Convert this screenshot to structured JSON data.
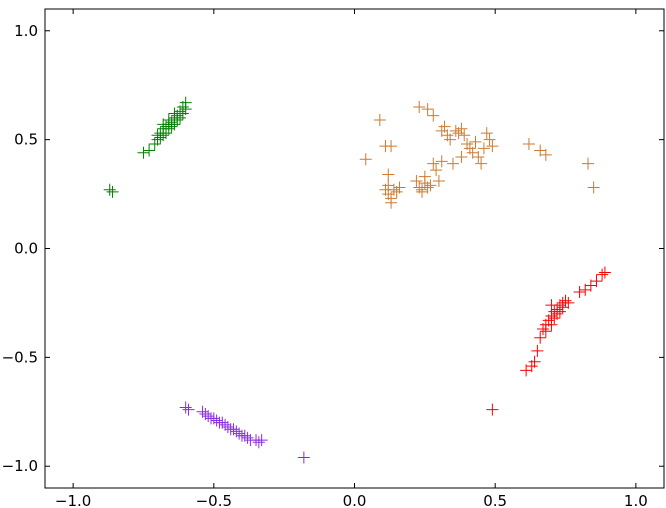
{
  "chart_data": {
    "type": "scatter",
    "title": "",
    "xlabel": "",
    "ylabel": "",
    "xlim": [
      -1.1,
      1.1
    ],
    "ylim": [
      -1.1,
      1.1
    ],
    "grid": false,
    "marker": "plus",
    "x_ticks": [
      -1.0,
      -0.5,
      0.0,
      0.5,
      1.0
    ],
    "x_tick_labels": [
      "−1.0",
      "−0.5",
      "0.0",
      "0.5",
      "1.0"
    ],
    "y_ticks": [
      -1.0,
      -0.5,
      0.0,
      0.5,
      1.0
    ],
    "y_tick_labels": [
      "−1.0",
      "−0.5",
      "0.0",
      "0.5",
      "1.0"
    ],
    "series": [
      {
        "color": "#008000",
        "points": [
          [
            -0.87,
            0.27
          ],
          [
            -0.86,
            0.26
          ],
          [
            -0.75,
            0.44
          ],
          [
            -0.73,
            0.45
          ],
          [
            -0.71,
            0.48
          ],
          [
            -0.7,
            0.5
          ],
          [
            -0.69,
            0.51
          ],
          [
            -0.69,
            0.53
          ],
          [
            -0.68,
            0.52
          ],
          [
            -0.68,
            0.55
          ],
          [
            -0.67,
            0.53
          ],
          [
            -0.67,
            0.56
          ],
          [
            -0.66,
            0.55
          ],
          [
            -0.66,
            0.57
          ],
          [
            -0.65,
            0.56
          ],
          [
            -0.65,
            0.58
          ],
          [
            -0.64,
            0.57
          ],
          [
            -0.64,
            0.6
          ],
          [
            -0.63,
            0.59
          ],
          [
            -0.63,
            0.61
          ],
          [
            -0.62,
            0.6
          ],
          [
            -0.62,
            0.63
          ],
          [
            -0.61,
            0.62
          ],
          [
            -0.61,
            0.65
          ],
          [
            -0.6,
            0.64
          ],
          [
            -0.6,
            0.67
          ],
          [
            -0.7,
            0.52
          ],
          [
            -0.68,
            0.57
          ],
          [
            -0.66,
            0.59
          ],
          [
            -0.64,
            0.62
          ]
        ]
      },
      {
        "color": "#cc7a30",
        "points": [
          [
            0.04,
            0.41
          ],
          [
            0.09,
            0.59
          ],
          [
            0.11,
            0.47
          ],
          [
            0.12,
            0.34
          ],
          [
            0.13,
            0.47
          ],
          [
            0.11,
            0.27
          ],
          [
            0.12,
            0.25
          ],
          [
            0.13,
            0.23
          ],
          [
            0.14,
            0.27
          ],
          [
            0.15,
            0.26
          ],
          [
            0.16,
            0.28
          ],
          [
            0.12,
            0.29
          ],
          [
            0.13,
            0.21
          ],
          [
            0.23,
            0.65
          ],
          [
            0.26,
            0.64
          ],
          [
            0.28,
            0.61
          ],
          [
            0.22,
            0.31
          ],
          [
            0.23,
            0.28
          ],
          [
            0.24,
            0.27
          ],
          [
            0.25,
            0.3
          ],
          [
            0.26,
            0.28
          ],
          [
            0.27,
            0.29
          ],
          [
            0.25,
            0.33
          ],
          [
            0.24,
            0.26
          ],
          [
            0.28,
            0.39
          ],
          [
            0.29,
            0.36
          ],
          [
            0.3,
            0.31
          ],
          [
            0.31,
            0.54
          ],
          [
            0.32,
            0.56
          ],
          [
            0.33,
            0.52
          ],
          [
            0.34,
            0.5
          ],
          [
            0.35,
            0.39
          ],
          [
            0.36,
            0.54
          ],
          [
            0.37,
            0.53
          ],
          [
            0.38,
            0.55
          ],
          [
            0.39,
            0.52
          ],
          [
            0.4,
            0.48
          ],
          [
            0.41,
            0.46
          ],
          [
            0.42,
            0.44
          ],
          [
            0.43,
            0.49
          ],
          [
            0.44,
            0.42
          ],
          [
            0.45,
            0.39
          ],
          [
            0.46,
            0.46
          ],
          [
            0.47,
            0.53
          ],
          [
            0.48,
            0.5
          ],
          [
            0.49,
            0.47
          ],
          [
            0.31,
            0.4
          ],
          [
            0.38,
            0.42
          ],
          [
            0.62,
            0.48
          ],
          [
            0.66,
            0.45
          ],
          [
            0.68,
            0.43
          ],
          [
            0.83,
            0.39
          ],
          [
            0.85,
            0.28
          ]
        ]
      },
      {
        "color": "#ff0000",
        "points": [
          [
            0.49,
            -0.74
          ],
          [
            0.61,
            -0.56
          ],
          [
            0.63,
            -0.54
          ],
          [
            0.64,
            -0.52
          ],
          [
            0.65,
            -0.47
          ],
          [
            0.66,
            -0.41
          ],
          [
            0.67,
            -0.37
          ],
          [
            0.68,
            -0.38
          ],
          [
            0.68,
            -0.35
          ],
          [
            0.69,
            -0.33
          ],
          [
            0.7,
            -0.31
          ],
          [
            0.7,
            -0.35
          ],
          [
            0.71,
            -0.29
          ],
          [
            0.71,
            -0.32
          ],
          [
            0.72,
            -0.28
          ],
          [
            0.72,
            -0.3
          ],
          [
            0.73,
            -0.26
          ],
          [
            0.73,
            -0.29
          ],
          [
            0.74,
            -0.25
          ],
          [
            0.74,
            -0.27
          ],
          [
            0.75,
            -0.24
          ],
          [
            0.76,
            -0.25
          ],
          [
            0.7,
            -0.26
          ],
          [
            0.8,
            -0.2
          ],
          [
            0.82,
            -0.19
          ],
          [
            0.84,
            -0.17
          ],
          [
            0.86,
            -0.15
          ],
          [
            0.88,
            -0.12
          ],
          [
            0.89,
            -0.11
          ]
        ]
      },
      {
        "color": "#8a2be2",
        "points": [
          [
            -0.6,
            -0.73
          ],
          [
            -0.59,
            -0.74
          ],
          [
            -0.54,
            -0.75
          ],
          [
            -0.53,
            -0.76
          ],
          [
            -0.52,
            -0.77
          ],
          [
            -0.51,
            -0.78
          ],
          [
            -0.5,
            -0.78
          ],
          [
            -0.49,
            -0.79
          ],
          [
            -0.48,
            -0.8
          ],
          [
            -0.47,
            -0.8
          ],
          [
            -0.46,
            -0.81
          ],
          [
            -0.45,
            -0.82
          ],
          [
            -0.44,
            -0.83
          ],
          [
            -0.43,
            -0.83
          ],
          [
            -0.42,
            -0.84
          ],
          [
            -0.41,
            -0.85
          ],
          [
            -0.4,
            -0.86
          ],
          [
            -0.39,
            -0.86
          ],
          [
            -0.38,
            -0.87
          ],
          [
            -0.37,
            -0.88
          ],
          [
            -0.35,
            -0.88
          ],
          [
            -0.34,
            -0.89
          ],
          [
            -0.33,
            -0.88
          ],
          [
            -0.18,
            -0.96
          ]
        ]
      }
    ]
  }
}
